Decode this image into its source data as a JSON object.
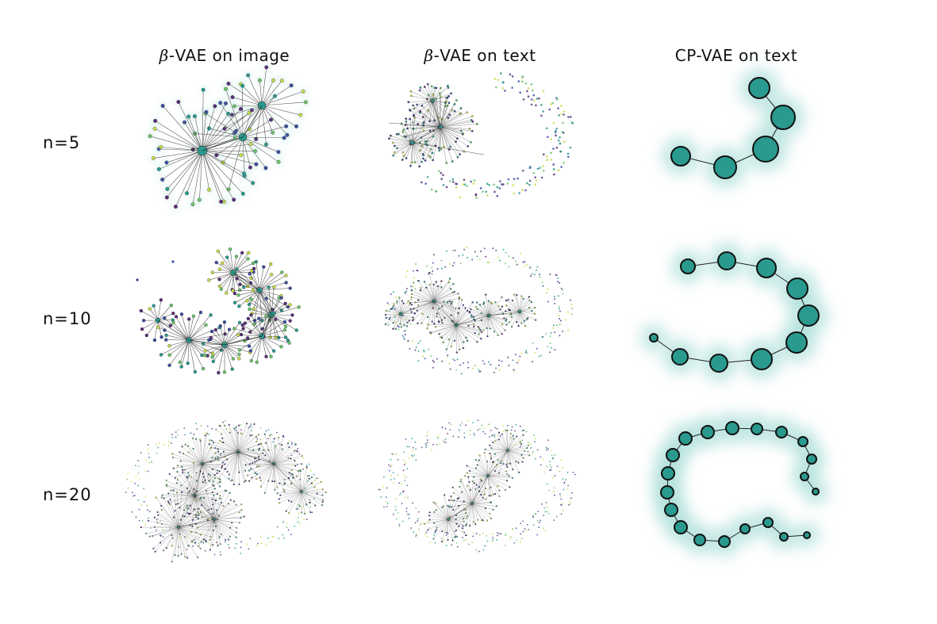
{
  "columns": [
    {
      "symbol": "β",
      "label": "-VAE on image"
    },
    {
      "symbol": "β",
      "label": "-VAE on text"
    },
    {
      "symbol": "",
      "label": "CP-VAE on text"
    }
  ],
  "rows": [
    "n=5",
    "n=10",
    "n=20"
  ],
  "colors": {
    "node_teal": "#2a9a8e",
    "node_green": "#6cc36a",
    "node_yellow": "#c8d94a",
    "node_blue": "#3b4fa0",
    "node_purple": "#5a2f7a",
    "edge": "#222222",
    "glow": "#8fd3cc"
  }
}
